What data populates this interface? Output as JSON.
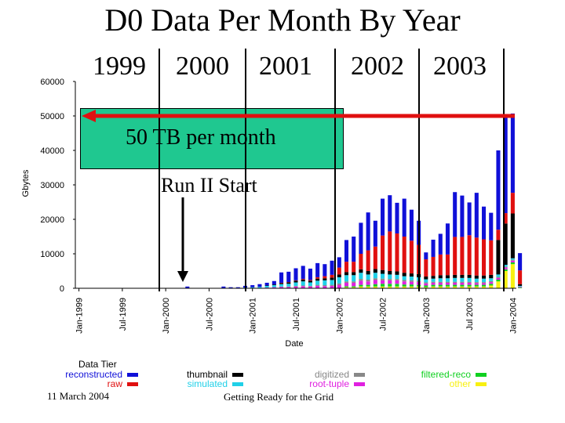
{
  "slide": {
    "title": "D0 Data Per Month By Year",
    "years": [
      "1999",
      "2000",
      "2001",
      "2002",
      "2003"
    ],
    "box_text": "50 TB per month",
    "annotation": "Run II Start",
    "footer_left": "11 March 2004",
    "footer_center": "Getting Ready for the Grid"
  },
  "colors": {
    "reconstructed": "#1010d8",
    "raw": "#e01010",
    "thumbnail": "#000000",
    "simulated": "#20d0e8",
    "digitized": "#888888",
    "root_tuple": "#e020e0",
    "filtered_reco": "#10d020",
    "other": "#f8f010",
    "box": "#1fc890",
    "arrow": "#e01010"
  },
  "chart_data": {
    "type": "bar",
    "stacked": true,
    "xlabel": "Date",
    "ylabel": "Gbytes",
    "ylim": [
      0,
      60000
    ],
    "yticks": [
      "0",
      "10000",
      "20000",
      "30000",
      "40000",
      "50000",
      "60000"
    ],
    "xticks": [
      "Jan-1999",
      "Jul-1999",
      "Jan-2000",
      "Jul-2000",
      "Jan-2001",
      "Jul-2001",
      "Jan-2002",
      "Jul-2002",
      "Jan-2003",
      "Jul 2003",
      "Jan-2004"
    ],
    "legend_title": "Data Tier",
    "reference_line_value": 50000,
    "annotation_month": "Apr-2000",
    "categories": [
      "Apr-2000",
      "Jul-2000",
      "Sep-2000",
      "Oct-2000",
      "Nov-2000",
      "Dec-2000",
      "Jan-2001",
      "Feb-2001",
      "Mar-2001",
      "Apr-2001",
      "May-2001",
      "Jun-2001",
      "Jul-2001",
      "Aug-2001",
      "Sep-2001",
      "Oct-2001",
      "Nov-2001",
      "Dec-2001",
      "Jan-2002",
      "Feb-2002",
      "Mar-2002",
      "Apr-2002",
      "May-2002",
      "Jun-2002",
      "Jul-2002",
      "Aug-2002",
      "Sep-2002",
      "Oct-2002",
      "Nov-2002",
      "Dec-2002",
      "Jan-2003",
      "Feb-2003",
      "Mar-2003",
      "Apr-2003",
      "May-2003",
      "Jun-2003",
      "Jul-2003",
      "Aug-2003",
      "Sep-2003",
      "Oct-2003",
      "Nov-2003",
      "Dec-2003",
      "Jan-2004",
      "Feb-2004"
    ],
    "series": [
      {
        "name": "other",
        "key": "other",
        "values": [
          0,
          0,
          0,
          0,
          0,
          0,
          0,
          0,
          0,
          0,
          0,
          0,
          0,
          0,
          0,
          0,
          0,
          0,
          0,
          300,
          300,
          500,
          500,
          500,
          500,
          500,
          500,
          500,
          500,
          500,
          300,
          500,
          500,
          500,
          500,
          500,
          500,
          500,
          500,
          800,
          2000,
          5000,
          7000,
          0
        ]
      },
      {
        "name": "filtered-reco",
        "key": "filtered_reco",
        "values": [
          0,
          0,
          0,
          0,
          0,
          0,
          0,
          0,
          0,
          0,
          0,
          0,
          0,
          0,
          0,
          0,
          0,
          0,
          0,
          300,
          300,
          500,
          500,
          700,
          800,
          800,
          800,
          600,
          600,
          500,
          500,
          500,
          500,
          500,
          500,
          500,
          500,
          500,
          500,
          500,
          500,
          500,
          500,
          200
        ]
      },
      {
        "name": "root-tuple",
        "key": "root_tuple",
        "values": [
          0,
          0,
          0,
          0,
          0,
          0,
          0,
          0,
          200,
          300,
          400,
          400,
          500,
          600,
          500,
          700,
          600,
          700,
          1000,
          1000,
          1000,
          1200,
          1000,
          1200,
          1000,
          1000,
          1000,
          900,
          800,
          800,
          600,
          600,
          600,
          600,
          600,
          600,
          600,
          500,
          500,
          500,
          500,
          500,
          500,
          200
        ]
      },
      {
        "name": "digitized",
        "key": "digitized",
        "values": [
          0,
          0,
          0,
          0,
          0,
          0,
          0,
          0,
          0,
          0,
          100,
          100,
          200,
          200,
          200,
          300,
          300,
          300,
          400,
          400,
          400,
          500,
          500,
          500,
          500,
          400,
          400,
          400,
          400,
          400,
          300,
          300,
          300,
          300,
          300,
          300,
          300,
          300,
          300,
          300,
          300,
          300,
          300,
          100
        ]
      },
      {
        "name": "simulated",
        "key": "simulated",
        "values": [
          0,
          0,
          0,
          0,
          0,
          200,
          300,
          400,
          500,
          600,
          700,
          800,
          1000,
          1200,
          1000,
          1200,
          1400,
          1400,
          1800,
          1800,
          1800,
          1800,
          1500,
          1600,
          1400,
          1300,
          1200,
          1100,
          1100,
          1000,
          900,
          900,
          1000,
          1000,
          1100,
          1100,
          1100,
          1000,
          1000,
          800,
          700,
          500,
          400,
          200
        ]
      },
      {
        "name": "thumbnail",
        "key": "thumbnail",
        "values": [
          0,
          0,
          0,
          0,
          0,
          0,
          0,
          0,
          100,
          200,
          300,
          400,
          500,
          500,
          500,
          600,
          600,
          700,
          800,
          900,
          900,
          1000,
          1000,
          1100,
          1100,
          1000,
          1000,
          1000,
          900,
          900,
          800,
          800,
          900,
          900,
          900,
          900,
          900,
          900,
          900,
          1000,
          10000,
          12000,
          13000,
          500
        ]
      },
      {
        "name": "raw",
        "key": "raw",
        "values": [
          0,
          0,
          0,
          0,
          0,
          0,
          0,
          0,
          0,
          0,
          100,
          100,
          100,
          200,
          200,
          400,
          600,
          800,
          2000,
          3000,
          3000,
          4500,
          6000,
          6500,
          10000,
          11500,
          11000,
          10500,
          9500,
          8500,
          5000,
          5500,
          6000,
          6000,
          11000,
          11000,
          11500,
          11000,
          10500,
          10000,
          3000,
          3000,
          6000,
          4000
        ]
      },
      {
        "name": "reconstructed",
        "key": "reconstructed",
        "values": [
          500,
          0,
          500,
          300,
          300,
          500,
          600,
          800,
          800,
          1000,
          3000,
          3000,
          3500,
          3800,
          3300,
          4100,
          3500,
          4100,
          3000,
          6300,
          7300,
          9000,
          11000,
          7500,
          10700,
          10500,
          8900,
          11000,
          9000,
          7000,
          2000,
          5000,
          6000,
          9000,
          13000,
          12000,
          9500,
          13000,
          9500,
          8000,
          23000,
          28000,
          23000,
          5000
        ]
      }
    ]
  }
}
